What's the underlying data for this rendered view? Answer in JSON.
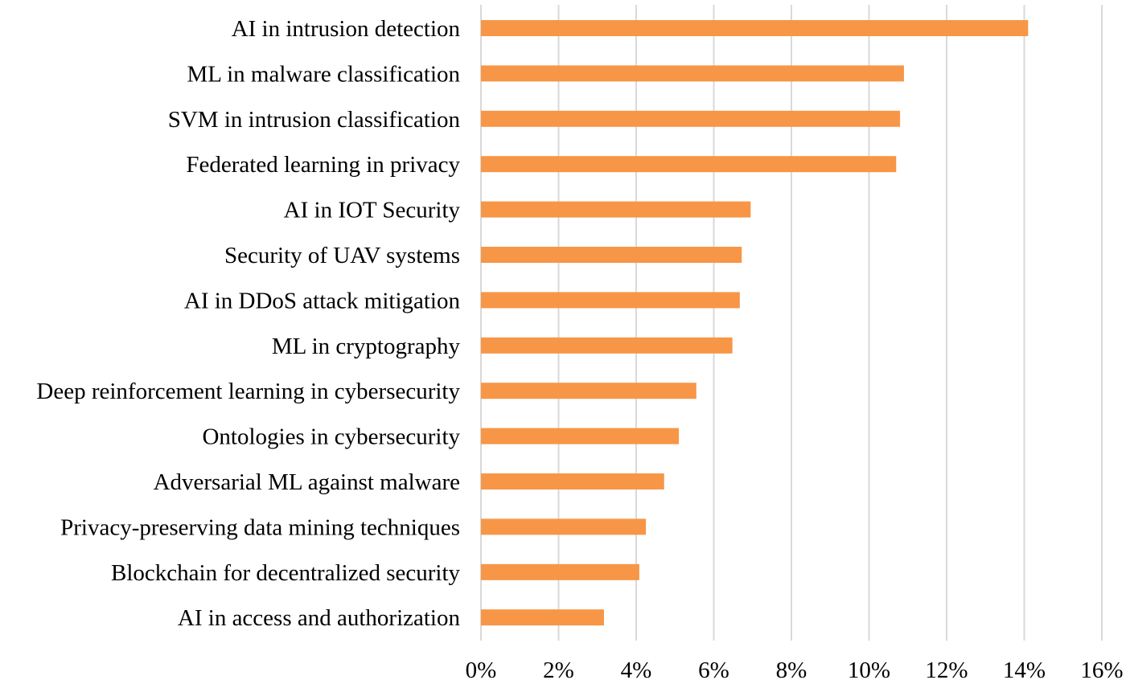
{
  "chart_data": {
    "type": "bar",
    "orientation": "horizontal",
    "title": "",
    "xlabel": "",
    "ylabel": "",
    "xlim": [
      0,
      16
    ],
    "grid": true,
    "bar_color": "#F79646",
    "grid_color": "#D9D9D9",
    "tick_suffix": "%",
    "x_ticks": [
      0,
      2,
      4,
      6,
      8,
      10,
      12,
      14,
      16
    ],
    "x_tick_labels": [
      "0%",
      "2%",
      "4%",
      "6%",
      "8%",
      "10%",
      "12%",
      "14%",
      "16%"
    ],
    "categories": [
      "AI in intrusion detection",
      "ML in malware classification",
      "SVM in intrusion classification",
      "Federated learning in privacy",
      "AI in IOT Security",
      "Security of UAV systems",
      "AI in DDoS attack mitigation",
      "ML in cryptography",
      "Deep reinforcement learning in cybersecurity",
      "Ontologies in cybersecurity",
      "Adversarial ML against malware",
      "Privacy-preserving data mining techniques",
      "Blockchain for decentralized security",
      "AI in access and authorization"
    ],
    "values": [
      14.1,
      10.9,
      10.8,
      10.7,
      6.95,
      6.72,
      6.67,
      6.48,
      5.55,
      5.1,
      4.72,
      4.25,
      4.08,
      3.17
    ]
  }
}
